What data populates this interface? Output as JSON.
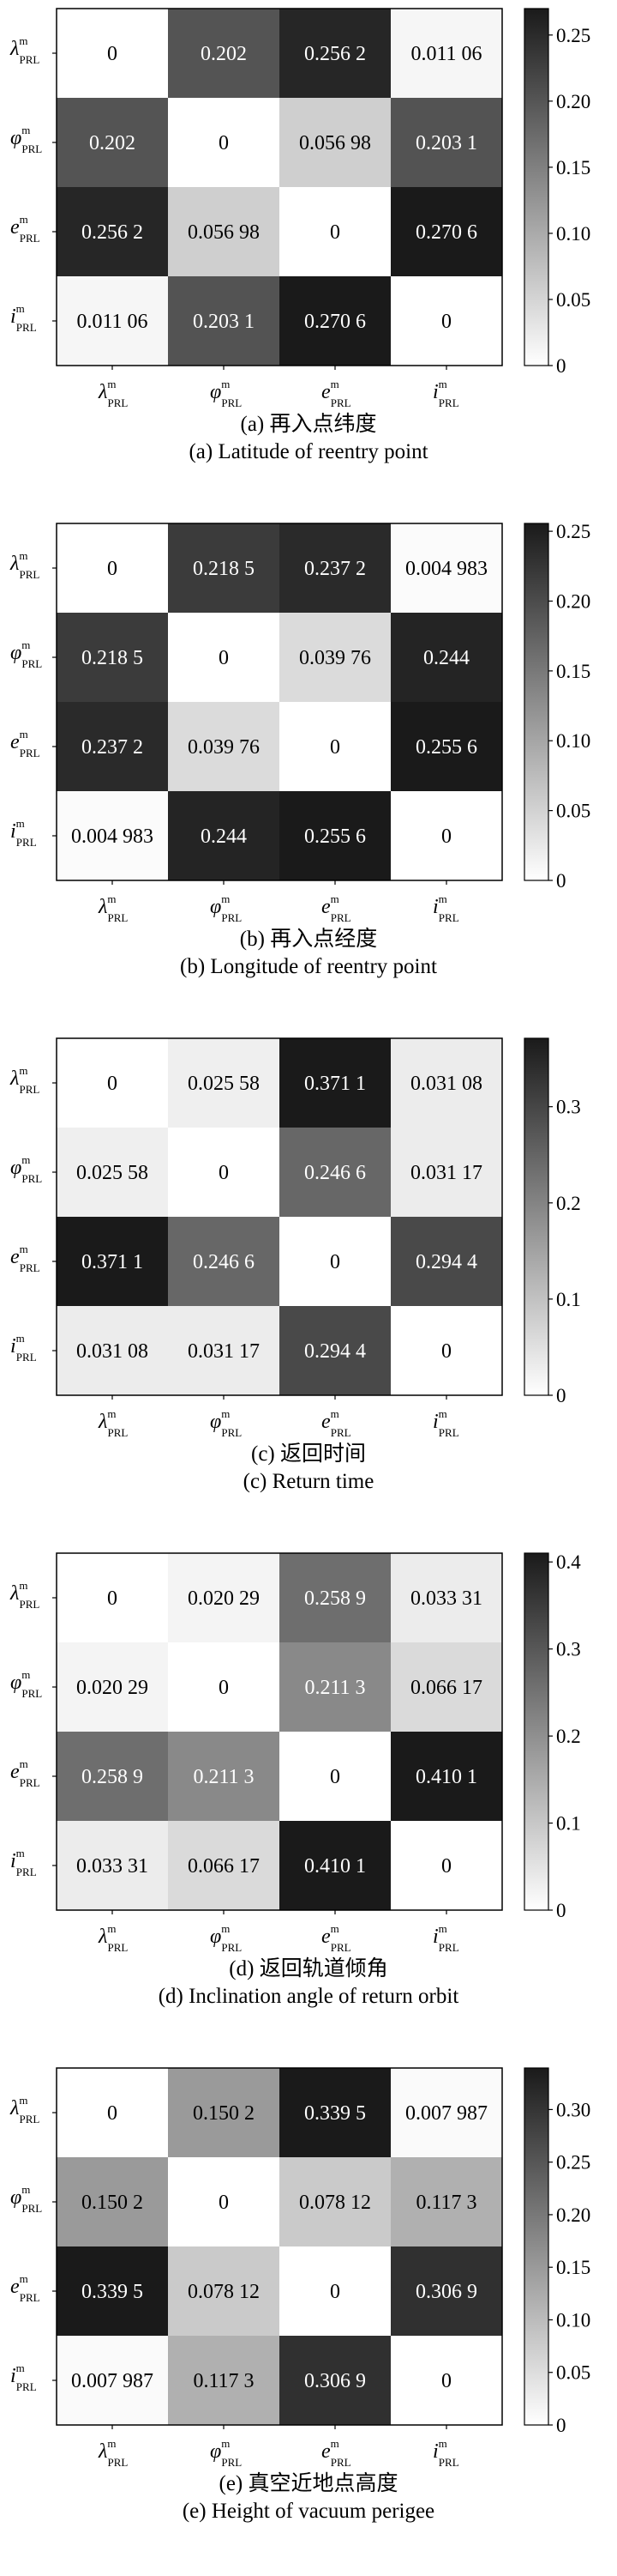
{
  "chart_data": [
    {
      "type": "heatmap",
      "caption_cn": "(a) 再入点纬度",
      "caption_en": "(a) Latitude of reentry point",
      "rows": [
        {
          "sym": "λ",
          "sup": "m",
          "sub": "PRL"
        },
        {
          "sym": "φ",
          "sup": "m",
          "sub": "PRL"
        },
        {
          "sym": "e",
          "sup": "m",
          "sub": "PRL"
        },
        {
          "sym": "i",
          "sup": "m",
          "sub": "PRL"
        }
      ],
      "cols": [
        {
          "sym": "λ",
          "sup": "m",
          "sub": "PRL"
        },
        {
          "sym": "φ",
          "sup": "m",
          "sub": "PRL"
        },
        {
          "sym": "e",
          "sup": "m",
          "sub": "PRL"
        },
        {
          "sym": "i",
          "sup": "m",
          "sub": "PRL"
        }
      ],
      "values": [
        [
          0,
          0.202,
          0.2562,
          0.01106
        ],
        [
          0.202,
          0,
          0.05698,
          0.2031
        ],
        [
          0.2562,
          0.05698,
          0,
          0.2706
        ],
        [
          0.01106,
          0.2031,
          0.2706,
          0
        ]
      ],
      "labels": [
        [
          "0",
          "0.202",
          "0.256 2",
          "0.011 06"
        ],
        [
          "0.202",
          "0",
          "0.056 98",
          "0.203 1"
        ],
        [
          "0.256 2",
          "0.056 98",
          "0",
          "0.270 6"
        ],
        [
          "0.011 06",
          "0.203 1",
          "0.270 6",
          "0"
        ]
      ],
      "colorbar": {
        "min": 0,
        "max": 0.27,
        "ticks": [
          "0",
          "0.05",
          "0.10",
          "0.15",
          "0.20",
          "0.25"
        ],
        "tick_values": [
          0,
          0.05,
          0.1,
          0.15,
          0.2,
          0.25
        ]
      },
      "colormap": "gray (white = low, black = high)"
    },
    {
      "type": "heatmap",
      "caption_cn": "(b) 再入点经度",
      "caption_en": "(b) Longitude of reentry point",
      "rows": [
        {
          "sym": "λ",
          "sup": "m",
          "sub": "PRL"
        },
        {
          "sym": "φ",
          "sup": "m",
          "sub": "PRL"
        },
        {
          "sym": "e",
          "sup": "m",
          "sub": "PRL"
        },
        {
          "sym": "i",
          "sup": "m",
          "sub": "PRL"
        }
      ],
      "cols": [
        {
          "sym": "λ",
          "sup": "m",
          "sub": "PRL"
        },
        {
          "sym": "φ",
          "sup": "m",
          "sub": "PRL"
        },
        {
          "sym": "e",
          "sup": "m",
          "sub": "PRL"
        },
        {
          "sym": "i",
          "sup": "m",
          "sub": "PRL"
        }
      ],
      "values": [
        [
          0,
          0.2185,
          0.2372,
          0.004983
        ],
        [
          0.2185,
          0,
          0.03976,
          0.244
        ],
        [
          0.2372,
          0.03976,
          0,
          0.2556
        ],
        [
          0.004983,
          0.244,
          0.2556,
          0
        ]
      ],
      "labels": [
        [
          "0",
          "0.218 5",
          "0.237 2",
          "0.004 983"
        ],
        [
          "0.218 5",
          "0",
          "0.039 76",
          "0.244"
        ],
        [
          "0.237 2",
          "0.039 76",
          "0",
          "0.255 6"
        ],
        [
          "0.004 983",
          "0.244",
          "0.255 6",
          "0"
        ]
      ],
      "colorbar": {
        "min": 0,
        "max": 0.2556,
        "ticks": [
          "0",
          "0.05",
          "0.10",
          "0.15",
          "0.20",
          "0.25"
        ],
        "tick_values": [
          0,
          0.05,
          0.1,
          0.15,
          0.2,
          0.25
        ]
      },
      "colormap": "gray (white = low, black = high)"
    },
    {
      "type": "heatmap",
      "caption_cn": "(c) 返回时间",
      "caption_en": "(c) Return time",
      "rows": [
        {
          "sym": "λ",
          "sup": "m",
          "sub": "PRL"
        },
        {
          "sym": "φ",
          "sup": "m",
          "sub": "PRL"
        },
        {
          "sym": "e",
          "sup": "m",
          "sub": "PRL"
        },
        {
          "sym": "i",
          "sup": "m",
          "sub": "PRL"
        }
      ],
      "cols": [
        {
          "sym": "λ",
          "sup": "m",
          "sub": "PRL"
        },
        {
          "sym": "φ",
          "sup": "m",
          "sub": "PRL"
        },
        {
          "sym": "e",
          "sup": "m",
          "sub": "PRL"
        },
        {
          "sym": "i",
          "sup": "m",
          "sub": "PRL"
        }
      ],
      "values": [
        [
          0,
          0.02558,
          0.3711,
          0.03108
        ],
        [
          0.02558,
          0,
          0.2466,
          0.03117
        ],
        [
          0.3711,
          0.2466,
          0,
          0.2944
        ],
        [
          0.03108,
          0.03117,
          0.2944,
          0
        ]
      ],
      "labels": [
        [
          "0",
          "0.025 58",
          "0.371 1",
          "0.031 08"
        ],
        [
          "0.025 58",
          "0",
          "0.246 6",
          "0.031 17"
        ],
        [
          "0.371 1",
          "0.246 6",
          "0",
          "0.294 4"
        ],
        [
          "0.031 08",
          "0.031 17",
          "0.294 4",
          "0"
        ]
      ],
      "colorbar": {
        "min": 0,
        "max": 0.3711,
        "ticks": [
          "0",
          "0.1",
          "0.2",
          "0.3"
        ],
        "tick_values": [
          0,
          0.1,
          0.2,
          0.3
        ]
      },
      "colormap": "gray (white = low, black = high)"
    },
    {
      "type": "heatmap",
      "caption_cn": "(d) 返回轨道倾角",
      "caption_en": "(d) Inclination angle of return orbit",
      "rows": [
        {
          "sym": "λ",
          "sup": "m",
          "sub": "PRL"
        },
        {
          "sym": "φ",
          "sup": "m",
          "sub": "PRL"
        },
        {
          "sym": "e",
          "sup": "m",
          "sub": "PRL"
        },
        {
          "sym": "i",
          "sup": "m",
          "sub": "PRL"
        }
      ],
      "cols": [
        {
          "sym": "λ",
          "sup": "m",
          "sub": "PRL"
        },
        {
          "sym": "φ",
          "sup": "m",
          "sub": "PRL"
        },
        {
          "sym": "e",
          "sup": "m",
          "sub": "PRL"
        },
        {
          "sym": "i",
          "sup": "m",
          "sub": "PRL"
        }
      ],
      "values": [
        [
          0,
          0.02029,
          0.2589,
          0.03331
        ],
        [
          0.02029,
          0,
          0.2113,
          0.06617
        ],
        [
          0.2589,
          0.2113,
          0,
          0.4101
        ],
        [
          0.03331,
          0.06617,
          0.4101,
          0
        ]
      ],
      "labels": [
        [
          "0",
          "0.020 29",
          "0.258 9",
          "0.033 31"
        ],
        [
          "0.020 29",
          "0",
          "0.211 3",
          "0.066 17"
        ],
        [
          "0.258 9",
          "0.211 3",
          "0",
          "0.410 1"
        ],
        [
          "0.033 31",
          "0.066 17",
          "0.410 1",
          "0"
        ]
      ],
      "colorbar": {
        "min": 0,
        "max": 0.4101,
        "ticks": [
          "0",
          "0.1",
          "0.2",
          "0.3",
          "0.4"
        ],
        "tick_values": [
          0,
          0.1,
          0.2,
          0.3,
          0.4
        ]
      },
      "colormap": "gray (white = low, black = high)"
    },
    {
      "type": "heatmap",
      "caption_cn": "(e) 真空近地点高度",
      "caption_en": "(e) Height of vacuum perigee",
      "rows": [
        {
          "sym": "λ",
          "sup": "m",
          "sub": "PRL"
        },
        {
          "sym": "φ",
          "sup": "m",
          "sub": "PRL"
        },
        {
          "sym": "e",
          "sup": "m",
          "sub": "PRL"
        },
        {
          "sym": "i",
          "sup": "m",
          "sub": "PRL"
        }
      ],
      "cols": [
        {
          "sym": "λ",
          "sup": "m",
          "sub": "PRL"
        },
        {
          "sym": "φ",
          "sup": "m",
          "sub": "PRL"
        },
        {
          "sym": "e",
          "sup": "m",
          "sub": "PRL"
        },
        {
          "sym": "i",
          "sup": "m",
          "sub": "PRL"
        }
      ],
      "values": [
        [
          0,
          0.1502,
          0.3395,
          0.007987
        ],
        [
          0.1502,
          0,
          0.07812,
          0.1173
        ],
        [
          0.3395,
          0.07812,
          0,
          0.3069
        ],
        [
          0.007987,
          0.1173,
          0.3069,
          0
        ]
      ],
      "labels": [
        [
          "0",
          "0.150 2",
          "0.339 5",
          "0.007 987"
        ],
        [
          "0.150 2",
          "0",
          "0.078 12",
          "0.117 3"
        ],
        [
          "0.339 5",
          "0.078 12",
          "0",
          "0.306 9"
        ],
        [
          "0.007 987",
          "0.117 3",
          "0.306 9",
          "0"
        ]
      ],
      "colorbar": {
        "min": 0,
        "max": 0.3395,
        "ticks": [
          "0",
          "0.05",
          "0.10",
          "0.15",
          "0.20",
          "0.25",
          "0.30"
        ],
        "tick_values": [
          0,
          0.05,
          0.1,
          0.15,
          0.2,
          0.25,
          0.3
        ]
      },
      "colormap": "gray (white = low, black = high)"
    }
  ]
}
